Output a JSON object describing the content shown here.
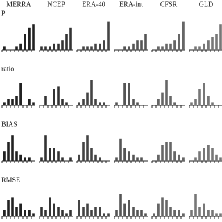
{
  "chart_data": [
    {
      "type": "bar",
      "title": "MERRA",
      "ylabel": "P",
      "values": [
        1,
        0,
        0,
        1,
        2,
        5,
        7,
        8
      ],
      "color": "#222222",
      "ylim": [
        0,
        10
      ]
    },
    {
      "type": "bar",
      "title": "NCEP",
      "values": [
        1,
        1,
        1,
        2,
        2,
        3,
        5,
        7
      ],
      "color": "#333333",
      "ylim": [
        0,
        10
      ]
    },
    {
      "type": "bar",
      "title": "ERA-40",
      "values": [
        0,
        1,
        1,
        1,
        2,
        2,
        3,
        9
      ],
      "color": "#444444",
      "ylim": [
        0,
        10
      ]
    },
    {
      "type": "bar",
      "title": "ERA-int",
      "values": [
        0,
        0,
        1,
        1,
        2,
        3,
        3,
        5
      ],
      "color": "#555555",
      "ylim": [
        0,
        10
      ]
    },
    {
      "type": "bar",
      "title": "CFSR",
      "values": [
        0,
        1,
        1,
        2,
        2,
        3,
        5,
        9
      ],
      "color": "#666666",
      "ylim": [
        0,
        10
      ]
    },
    {
      "type": "bar",
      "title": "GLD",
      "values": [
        0,
        1,
        1,
        2,
        3,
        4,
        5,
        8
      ],
      "color": "#777777",
      "ylim": [
        0,
        10
      ]
    },
    {
      "type": "bar",
      "ylabel": "ratio",
      "values": [
        1,
        2,
        2,
        3,
        7,
        0,
        2,
        1
      ],
      "color": "#222222",
      "ylim": [
        0,
        10
      ]
    },
    {
      "type": "bar",
      "values": [
        0,
        3,
        0,
        5,
        6,
        2,
        1,
        0
      ],
      "color": "#333333",
      "ylim": [
        0,
        10
      ]
    },
    {
      "type": "bar",
      "values": [
        1,
        2,
        4,
        8,
        2,
        1,
        1,
        0
      ],
      "color": "#444444",
      "ylim": [
        0,
        10
      ]
    },
    {
      "type": "bar",
      "values": [
        1,
        0,
        7,
        7,
        2,
        1,
        0,
        0
      ],
      "color": "#555555",
      "ylim": [
        0,
        10
      ]
    },
    {
      "type": "bar",
      "values": [
        0,
        2,
        4,
        8,
        3,
        1,
        0,
        0
      ],
      "color": "#666666",
      "ylim": [
        0,
        10
      ]
    },
    {
      "type": "bar",
      "values": [
        1,
        2,
        5,
        7,
        3,
        1,
        0,
        0
      ],
      "color": "#777777",
      "ylim": [
        0,
        10
      ]
    },
    {
      "type": "bar",
      "ylabel": "BIAS",
      "values": [
        3,
        6,
        8,
        3,
        2,
        1,
        1,
        0
      ],
      "color": "#222222",
      "ylim": [
        0,
        10
      ]
    },
    {
      "type": "bar",
      "values": [
        1,
        8,
        4,
        4,
        3,
        1,
        0,
        1
      ],
      "color": "#333333",
      "ylim": [
        0,
        10
      ]
    },
    {
      "type": "bar",
      "values": [
        2,
        6,
        8,
        4,
        2,
        1,
        0,
        0
      ],
      "color": "#444444",
      "ylim": [
        0,
        10
      ]
    },
    {
      "type": "bar",
      "values": [
        1,
        7,
        4,
        3,
        2,
        1,
        1,
        0
      ],
      "color": "#555555",
      "ylim": [
        0,
        10
      ]
    },
    {
      "type": "bar",
      "values": [
        0,
        2,
        5,
        6,
        6,
        3,
        2,
        1
      ],
      "color": "#666666",
      "ylim": [
        0,
        10
      ]
    },
    {
      "type": "bar",
      "values": [
        0,
        1,
        3,
        4,
        5,
        4,
        2,
        1
      ],
      "color": "#777777",
      "ylim": [
        0,
        10
      ]
    },
    {
      "type": "bar",
      "ylabel": "RMSE",
      "values": [
        2,
        5,
        6,
        3,
        4,
        2,
        2,
        1
      ],
      "color": "#222222",
      "ylim": [
        0,
        10
      ]
    },
    {
      "type": "bar",
      "values": [
        3,
        2,
        6,
        4,
        3,
        2,
        1,
        2
      ],
      "color": "#333333",
      "ylim": [
        0,
        10
      ]
    },
    {
      "type": "bar",
      "values": [
        5,
        3,
        4,
        2,
        3,
        3,
        1,
        1
      ],
      "color": "#444444",
      "ylim": [
        0,
        10
      ]
    },
    {
      "type": "bar",
      "values": [
        2,
        7,
        4,
        5,
        3,
        2,
        2,
        1
      ],
      "color": "#555555",
      "ylim": [
        0,
        10
      ]
    },
    {
      "type": "bar",
      "values": [
        1,
        4,
        6,
        5,
        3,
        2,
        2,
        1
      ],
      "color": "#666666",
      "ylim": [
        0,
        10
      ]
    },
    {
      "type": "bar",
      "values": [
        2,
        7,
        3,
        4,
        2,
        2,
        1,
        1
      ],
      "color": "#777777",
      "ylim": [
        0,
        10
      ]
    }
  ]
}
